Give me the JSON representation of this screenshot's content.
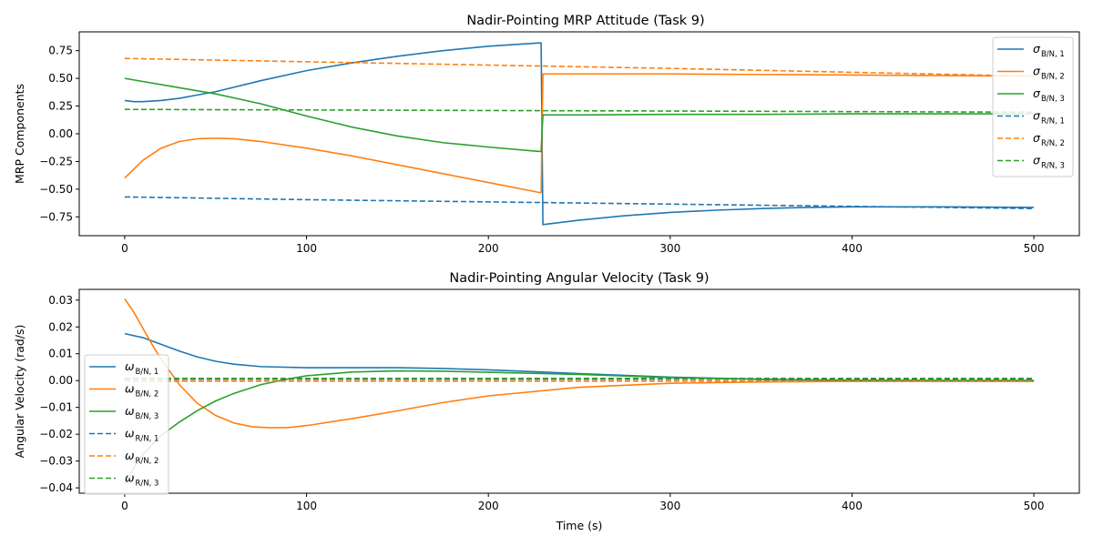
{
  "figure": {
    "background": "#ffffff"
  },
  "chart_data": [
    {
      "type": "line",
      "title": "Nadir-Pointing MRP Attitude (Task 9)",
      "xlabel": "",
      "ylabel": "MRP Components",
      "xlim": [
        -25,
        525
      ],
      "ylim": [
        -0.92,
        0.92
      ],
      "xticks": [
        0,
        100,
        200,
        300,
        400,
        500
      ],
      "yticks": [
        -0.75,
        -0.5,
        -0.25,
        0.0,
        0.25,
        0.5,
        0.75
      ],
      "ytick_labels": [
        "−0.75",
        "−0.50",
        "−0.25",
        "0.00",
        "0.25",
        "0.50",
        "0.75"
      ],
      "grid": false,
      "legend": {
        "placement": "top-right"
      },
      "series": [
        {
          "name": "σ",
          "sub": "B/N, 1",
          "color": "#1f77b4",
          "dash": "solid",
          "x": [
            0,
            5,
            10,
            20,
            30,
            40,
            50,
            75,
            100,
            125,
            150,
            175,
            200,
            228,
            229,
            230,
            250,
            275,
            300,
            325,
            350,
            375,
            400,
            450,
            500
          ],
          "y": [
            0.3,
            0.29,
            0.29,
            0.3,
            0.32,
            0.35,
            0.38,
            0.48,
            0.57,
            0.64,
            0.7,
            0.75,
            0.79,
            0.82,
            0.82,
            -0.82,
            -0.78,
            -0.74,
            -0.71,
            -0.69,
            -0.675,
            -0.665,
            -0.66,
            -0.66,
            -0.665
          ]
        },
        {
          "name": "σ",
          "sub": "B/N, 2",
          "color": "#ff7f0e",
          "dash": "solid",
          "x": [
            0,
            5,
            10,
            20,
            30,
            40,
            50,
            60,
            75,
            100,
            125,
            150,
            175,
            200,
            228,
            229,
            230,
            250,
            300,
            350,
            400,
            450,
            500
          ],
          "y": [
            -0.4,
            -0.32,
            -0.24,
            -0.13,
            -0.07,
            -0.045,
            -0.04,
            -0.045,
            -0.07,
            -0.13,
            -0.2,
            -0.28,
            -0.36,
            -0.44,
            -0.53,
            -0.53,
            0.54,
            0.54,
            0.54,
            0.535,
            0.53,
            0.525,
            0.52
          ]
        },
        {
          "name": "σ",
          "sub": "B/N, 3",
          "color": "#2ca02c",
          "dash": "solid",
          "x": [
            0,
            25,
            50,
            75,
            100,
            125,
            150,
            175,
            200,
            228,
            229,
            230,
            250,
            300,
            350,
            400,
            450,
            500
          ],
          "y": [
            0.5,
            0.43,
            0.36,
            0.27,
            0.16,
            0.06,
            -0.02,
            -0.08,
            -0.12,
            -0.16,
            -0.16,
            0.17,
            0.17,
            0.175,
            0.175,
            0.18,
            0.18,
            0.18
          ]
        },
        {
          "name": "σ",
          "sub": "R/N, 1",
          "color": "#1f77b4",
          "dash": "dashed",
          "x": [
            0,
            100,
            200,
            300,
            400,
            500
          ],
          "y": [
            -0.57,
            -0.595,
            -0.615,
            -0.635,
            -0.655,
            -0.675
          ]
        },
        {
          "name": "σ",
          "sub": "R/N, 2",
          "color": "#ff7f0e",
          "dash": "dashed",
          "x": [
            0,
            100,
            200,
            300,
            400,
            500
          ],
          "y": [
            0.68,
            0.65,
            0.62,
            0.59,
            0.555,
            0.52
          ]
        },
        {
          "name": "σ",
          "sub": "R/N, 3",
          "color": "#2ca02c",
          "dash": "dashed",
          "x": [
            0,
            100,
            200,
            300,
            400,
            500
          ],
          "y": [
            0.22,
            0.215,
            0.21,
            0.205,
            0.2,
            0.195
          ]
        }
      ]
    },
    {
      "type": "line",
      "title": "Nadir-Pointing Angular Velocity (Task 9)",
      "xlabel": "Time (s)",
      "ylabel": "Angular Velocity (rad/s)",
      "xlim": [
        -25,
        525
      ],
      "ylim": [
        -0.042,
        0.034
      ],
      "xticks": [
        0,
        100,
        200,
        300,
        400,
        500
      ],
      "yticks": [
        -0.04,
        -0.03,
        -0.02,
        -0.01,
        0.0,
        0.01,
        0.02,
        0.03
      ],
      "ytick_labels": [
        "−0.04",
        "−0.03",
        "−0.02",
        "−0.01",
        "0.00",
        "0.01",
        "0.02",
        "0.03"
      ],
      "grid": false,
      "legend": {
        "placement": "center-left"
      },
      "series": [
        {
          "name": "ω",
          "sub": "B/N, 1",
          "color": "#1f77b4",
          "dash": "solid",
          "x": [
            0,
            10,
            20,
            30,
            40,
            50,
            60,
            75,
            100,
            125,
            150,
            175,
            200,
            225,
            250,
            300,
            350,
            400,
            450,
            500
          ],
          "y": [
            0.0175,
            0.016,
            0.0135,
            0.011,
            0.0088,
            0.0072,
            0.0061,
            0.0052,
            0.0048,
            0.0048,
            0.0048,
            0.0045,
            0.004,
            0.0033,
            0.0026,
            0.0013,
            0.0005,
            0.0001,
            0.0,
            0.0
          ]
        },
        {
          "name": "ω",
          "sub": "B/N, 2",
          "color": "#ff7f0e",
          "dash": "solid",
          "x": [
            0,
            5,
            10,
            15,
            20,
            30,
            40,
            50,
            60,
            70,
            80,
            90,
            100,
            125,
            150,
            175,
            200,
            250,
            300,
            350,
            400,
            450,
            500
          ],
          "y": [
            0.0305,
            0.0255,
            0.0195,
            0.0135,
            0.008,
            -0.0015,
            -0.0085,
            -0.013,
            -0.0158,
            -0.0172,
            -0.0176,
            -0.0175,
            -0.0168,
            -0.0142,
            -0.0113,
            -0.0082,
            -0.0057,
            -0.0025,
            -0.001,
            -0.0005,
            -0.0003,
            -0.0003,
            -0.0003
          ]
        },
        {
          "name": "ω",
          "sub": "B/N, 3",
          "color": "#2ca02c",
          "dash": "solid",
          "x": [
            0,
            5,
            10,
            20,
            30,
            40,
            50,
            60,
            75,
            90,
            100,
            125,
            150,
            175,
            200,
            250,
            300,
            350,
            400,
            450,
            500
          ],
          "y": [
            -0.0385,
            -0.0325,
            -0.0275,
            -0.0205,
            -0.0155,
            -0.0112,
            -0.0076,
            -0.0048,
            -0.0015,
            0.0006,
            0.0018,
            0.0032,
            0.0036,
            0.0035,
            0.0031,
            0.0023,
            0.0011,
            0.0004,
            0.0001,
            0.0,
            0.0
          ]
        },
        {
          "name": "ω",
          "sub": "R/N, 1",
          "color": "#1f77b4",
          "dash": "dashed",
          "x": [
            0,
            500
          ],
          "y": [
            0.0005,
            0.0005
          ]
        },
        {
          "name": "ω",
          "sub": "R/N, 2",
          "color": "#ff7f0e",
          "dash": "dashed",
          "x": [
            0,
            500
          ],
          "y": [
            -0.0002,
            -0.0002
          ]
        },
        {
          "name": "ω",
          "sub": "R/N, 3",
          "color": "#2ca02c",
          "dash": "dashed",
          "x": [
            0,
            500
          ],
          "y": [
            0.0008,
            0.0008
          ]
        }
      ]
    }
  ]
}
